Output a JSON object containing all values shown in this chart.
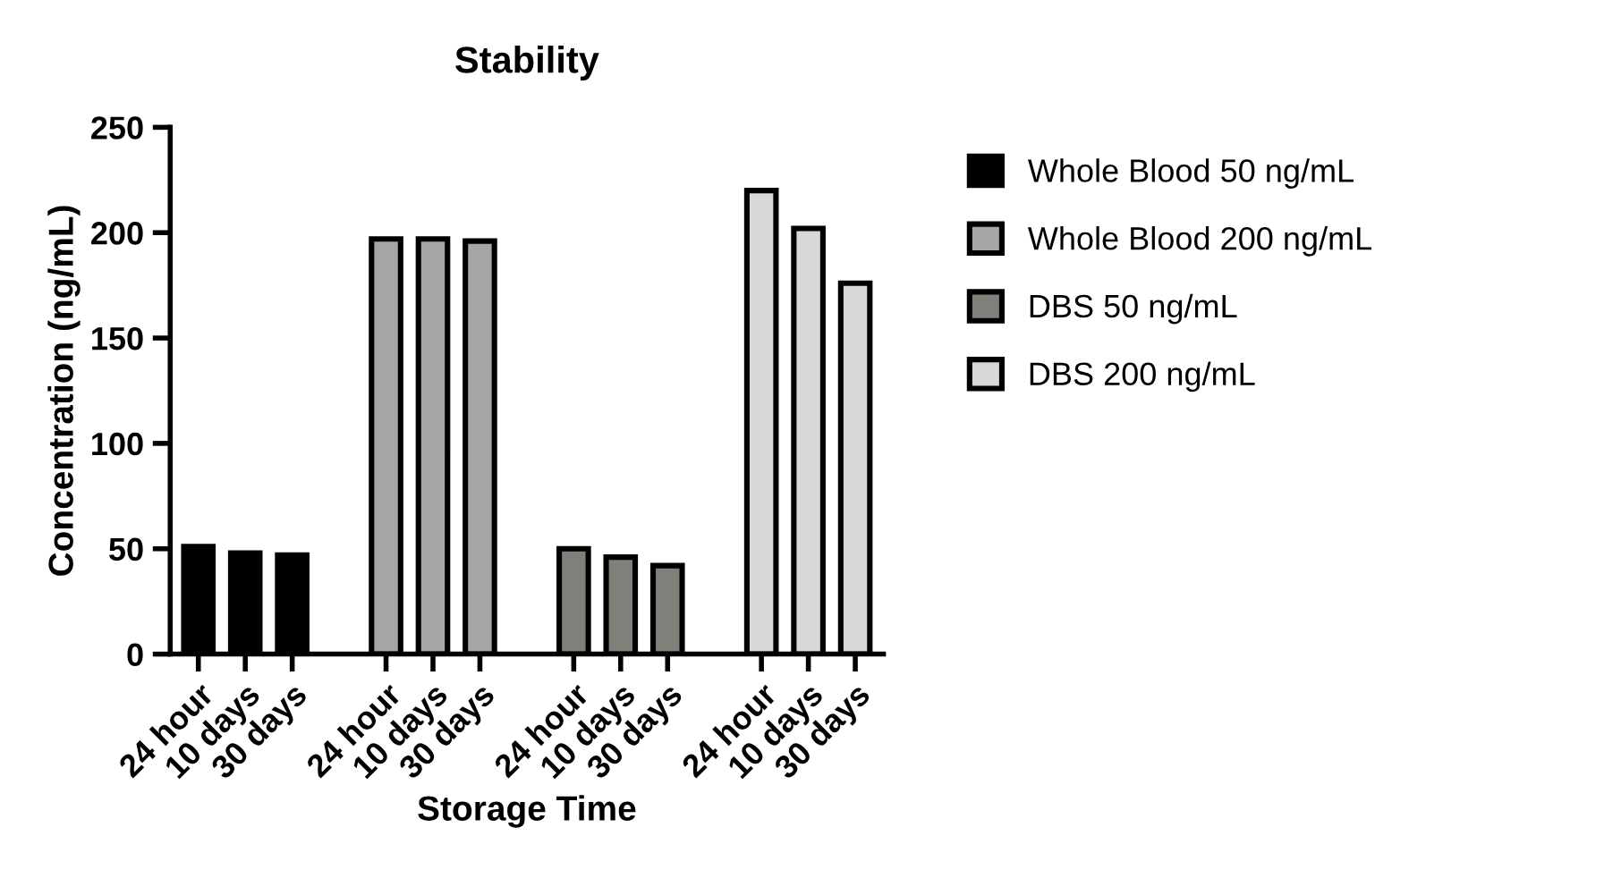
{
  "chart_data": {
    "type": "bar",
    "title": "Stability",
    "xlabel": "Storage Time",
    "ylabel": "Concentration (ng/mL)",
    "categories": [
      "24 hour",
      "10 days",
      "30 days",
      null,
      "24 hour",
      "10 days",
      "30 days",
      null,
      "24 hour",
      "10 days",
      "30 days",
      null,
      "24 hour",
      "10 days",
      "30 days"
    ],
    "series": [
      {
        "name": "Whole Blood 50 ng/mL",
        "color": "#000000",
        "values": [
          51,
          48,
          47,
          null,
          null,
          null,
          null,
          null,
          null,
          null,
          null,
          null,
          null,
          null,
          null
        ]
      },
      {
        "name": "Whole Blood 200 ng/mL",
        "color": "#a6a6a6",
        "values": [
          null,
          null,
          null,
          null,
          197,
          197,
          196,
          null,
          null,
          null,
          null,
          null,
          null,
          null,
          null
        ]
      },
      {
        "name": "DBS 50 ng/mL",
        "color": "#80807b",
        "values": [
          null,
          null,
          null,
          null,
          null,
          null,
          null,
          null,
          50,
          46,
          42,
          null,
          null,
          null,
          null
        ]
      },
      {
        "name": "DBS 200 ng/mL",
        "color": "#d8d8d8",
        "values": [
          null,
          null,
          null,
          null,
          null,
          null,
          null,
          null,
          null,
          null,
          null,
          null,
          220,
          202,
          176
        ]
      }
    ],
    "ylim": [
      0,
      250
    ],
    "yticks": [
      0,
      50,
      100,
      150,
      200,
      250
    ],
    "grid": false,
    "legend": "top right"
  }
}
